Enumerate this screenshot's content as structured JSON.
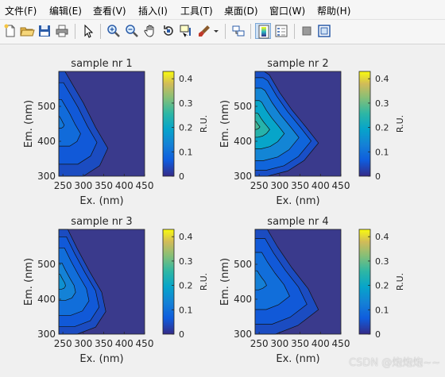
{
  "menu": [
    {
      "label": "文件(F)"
    },
    {
      "label": "编辑(E)"
    },
    {
      "label": "查看(V)"
    },
    {
      "label": "插入(I)"
    },
    {
      "label": "工具(T)"
    },
    {
      "label": "桌面(D)"
    },
    {
      "label": "窗口(W)"
    },
    {
      "label": "帮助(H)"
    }
  ],
  "toolbar_icons": [
    "new-figure-icon",
    "open-file-icon",
    "save-icon",
    "print-icon",
    "pointer-icon",
    "zoom-in-icon",
    "zoom-out-icon",
    "pan-hand-icon",
    "rotate-3d-icon",
    "data-cursor-icon",
    "brush-icon",
    "link-plot-icon",
    "colorbar-icon",
    "legend-icon",
    "hide-plot-tools-icon",
    "show-plot-tools-icon"
  ],
  "colors": {
    "plot_background": "#3a3a8c",
    "parula_low": "#352a87",
    "parula_high": "#f9fb0e"
  },
  "watermark": "CSDN @炮炮炮~~",
  "chart_data": [
    {
      "type": "heatmap",
      "title": "sample nr 1",
      "xlabel": "Ex. (nm)",
      "ylabel": "Em. (nm)",
      "xticks": [
        250,
        300,
        350,
        400,
        450
      ],
      "yticks": [
        300,
        400,
        500
      ],
      "xlim": [
        240,
        450
      ],
      "ylim": [
        300,
        600
      ],
      "colorbar": {
        "label": "R.U.",
        "ticks": [
          0,
          0.1,
          0.2,
          0.3,
          0.4
        ],
        "range": [
          0,
          0.43
        ]
      },
      "contour_levels": [
        0.02,
        0.05,
        0.08
      ],
      "peak": {
        "ex": 240,
        "em": 455,
        "value": 0.09
      },
      "boundary": [
        [
          240,
          300
        ],
        [
          300,
          300
        ],
        [
          340,
          330
        ],
        [
          360,
          380
        ],
        [
          330,
          440
        ],
        [
          300,
          510
        ],
        [
          270,
          570
        ],
        [
          255,
          600
        ],
        [
          240,
          600
        ]
      ]
    },
    {
      "type": "heatmap",
      "title": "sample nr 2",
      "xlabel": "Ex. (nm)",
      "ylabel": "Em. (nm)",
      "xticks": [
        250,
        300,
        350,
        400,
        450
      ],
      "yticks": [
        300,
        400,
        500
      ],
      "xlim": [
        240,
        450
      ],
      "ylim": [
        300,
        600
      ],
      "colorbar": {
        "label": "R.U.",
        "ticks": [
          0,
          0.1,
          0.2,
          0.3,
          0.4
        ],
        "range": [
          0,
          0.43
        ]
      },
      "contour_levels": [
        0.03,
        0.08,
        0.14,
        0.2,
        0.24
      ],
      "peak": {
        "ex": 240,
        "em": 445,
        "value": 0.26
      },
      "boundary": [
        [
          240,
          300
        ],
        [
          270,
          300
        ],
        [
          320,
          315
        ],
        [
          360,
          345
        ],
        [
          395,
          395
        ],
        [
          365,
          440
        ],
        [
          330,
          490
        ],
        [
          300,
          540
        ],
        [
          275,
          590
        ],
        [
          262,
          600
        ],
        [
          240,
          600
        ]
      ]
    },
    {
      "type": "heatmap",
      "title": "sample nr 3",
      "xlabel": "Ex. (nm)",
      "ylabel": "Em. (nm)",
      "xticks": [
        250,
        300,
        350,
        400,
        450
      ],
      "yticks": [
        300,
        400,
        500
      ],
      "xlim": [
        240,
        450
      ],
      "ylim": [
        300,
        600
      ],
      "colorbar": {
        "label": "R.U.",
        "ticks": [
          0,
          0.1,
          0.2,
          0.3,
          0.4
        ],
        "range": [
          0,
          0.43
        ]
      },
      "contour_levels": [
        0.02,
        0.05,
        0.09,
        0.12
      ],
      "peak": {
        "ex": 240,
        "em": 450,
        "value": 0.14
      },
      "boundary": [
        [
          240,
          300
        ],
        [
          285,
          300
        ],
        [
          330,
          320
        ],
        [
          355,
          365
        ],
        [
          345,
          420
        ],
        [
          315,
          480
        ],
        [
          285,
          545
        ],
        [
          262,
          600
        ],
        [
          240,
          600
        ]
      ]
    },
    {
      "type": "heatmap",
      "title": "sample nr 4",
      "xlabel": "Ex. (nm)",
      "ylabel": "Em. (nm)",
      "xticks": [
        250,
        300,
        350,
        400,
        450
      ],
      "yticks": [
        300,
        400,
        500
      ],
      "xlim": [
        240,
        450
      ],
      "ylim": [
        300,
        600
      ],
      "colorbar": {
        "label": "R.U.",
        "ticks": [
          0,
          0.1,
          0.2,
          0.3,
          0.4
        ],
        "range": [
          0,
          0.43
        ]
      },
      "contour_levels": [
        0.02,
        0.05,
        0.09
      ],
      "peak": {
        "ex": 240,
        "em": 455,
        "value": 0.11
      },
      "boundary": [
        [
          240,
          300
        ],
        [
          290,
          300
        ],
        [
          345,
          325
        ],
        [
          395,
          370
        ],
        [
          370,
          430
        ],
        [
          330,
          490
        ],
        [
          295,
          550
        ],
        [
          270,
          600
        ],
        [
          240,
          600
        ]
      ]
    }
  ]
}
